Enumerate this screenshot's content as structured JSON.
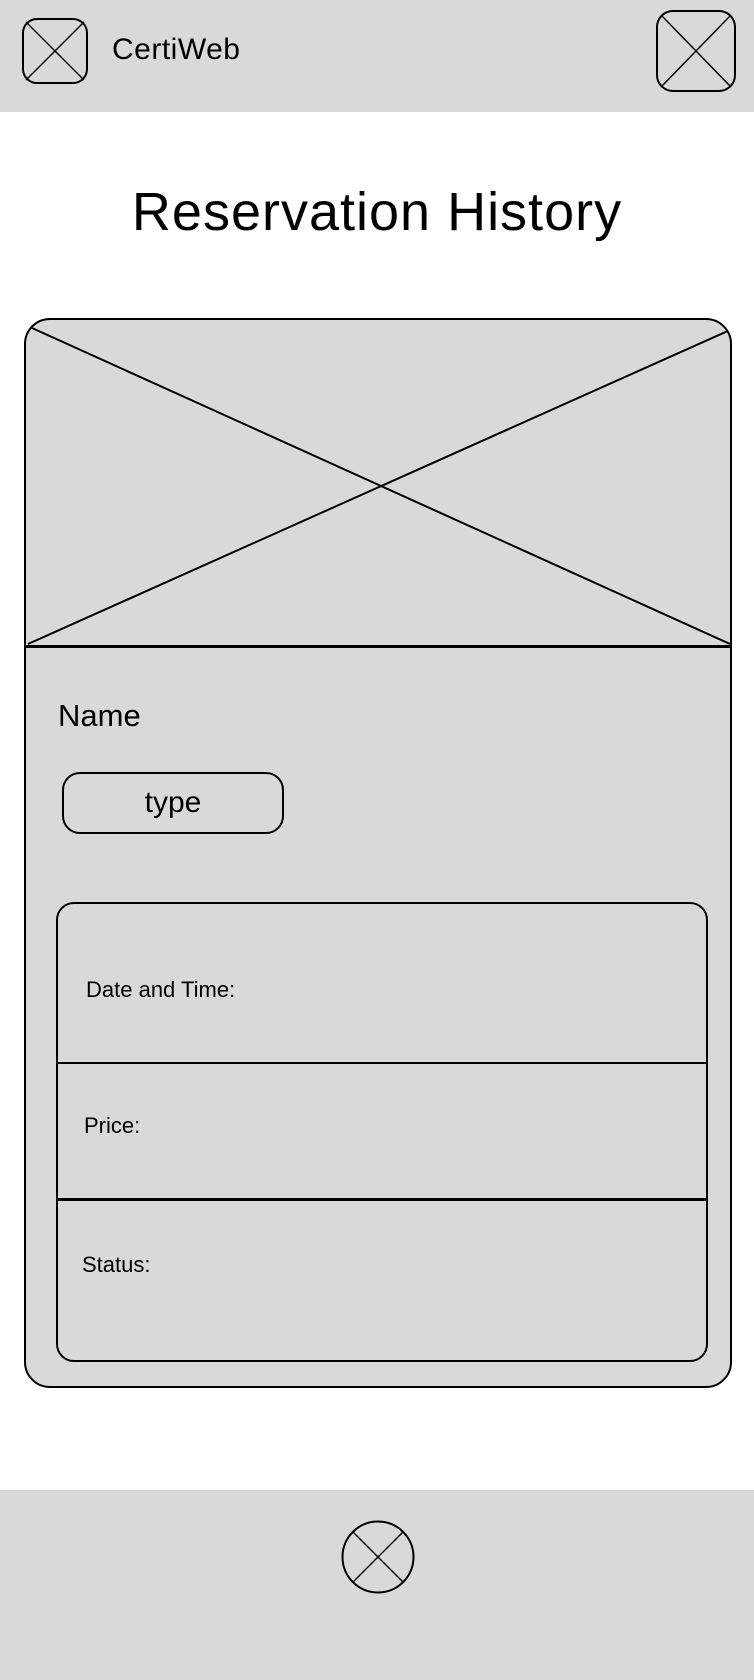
{
  "header": {
    "app_title": "CertiWeb",
    "logo_icon": "image-placeholder-icon",
    "menu_icon": "image-placeholder-icon"
  },
  "main": {
    "page_title": "Reservation History"
  },
  "reservation_card": {
    "image_icon": "image-placeholder",
    "name": "Name",
    "type": "type",
    "details": {
      "date_time_label": "Date and Time:",
      "price_label": "Price:",
      "status_label": "Status:"
    }
  },
  "footer": {
    "icon": "circle-placeholder-icon"
  },
  "colors": {
    "placeholder_fill": "#d9d9d9",
    "stroke": "#000000",
    "background": "#ffffff"
  }
}
